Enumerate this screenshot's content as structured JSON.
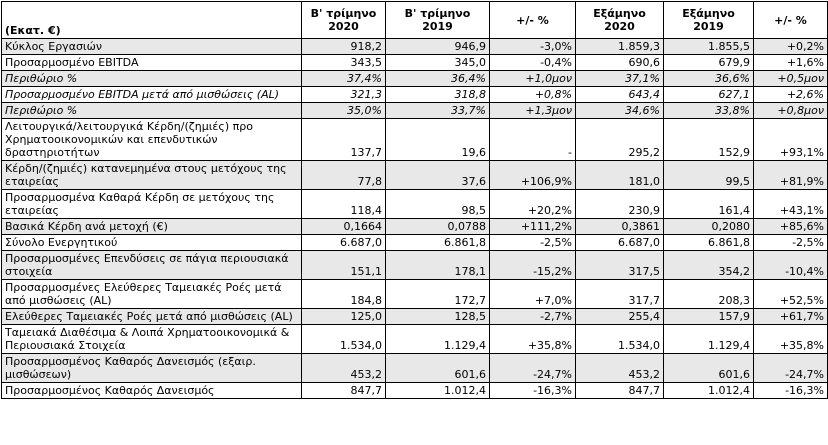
{
  "table": {
    "header": [
      "(Εκατ. €)",
      "Β' τρίμηνο\n2020",
      "Β' τρίμηνο\n2019",
      "+/- %",
      "Εξάμηνο\n2020",
      "Εξάμηνο\n2019",
      "+/- %"
    ],
    "rows": [
      [
        "Κύκλος Εργασιών",
        "918,2",
        "946,9",
        "-3,0%",
        "1.859,3",
        "1.855,5",
        "+0,2%"
      ],
      [
        "Προσαρμοσμένο EBITDA",
        "343,5",
        "345,0",
        "-0,4%",
        "690,6",
        "679,9",
        "+1,6%"
      ],
      [
        "Περιθώριο %",
        "37,4%",
        "36,4%",
        "+1,0μον",
        "37,1%",
        "36,6%",
        "+0,5μον"
      ],
      [
        "Προσαρμοσμένο EBITDA μετά από μισθώσεις (AL)",
        "321,3",
        "318,8",
        "+0,8%",
        "643,4",
        "627,1",
        "+2,6%"
      ],
      [
        "Περιθώριο %",
        "35,0%",
        "33,7%",
        "+1,3μον",
        "34,6%",
        "33,8%",
        "+0,8μον"
      ],
      [
        "Λειτουργικά/λειτουργικά Κέρδη/(ζημιές) προ Χρηματοοικονομικών και επενδυτικών δραστηριοτήτων",
        "137,7",
        "19,6",
        "-",
        "295,2",
        "152,9",
        "+93,1%"
      ],
      [
        "Κέρδη/(ζημιές) κατανεμημένα στους μετόχους της εταιρείας",
        "77,8",
        "37,6",
        "+106,9%",
        "181,0",
        "99,5",
        "+81,9%"
      ],
      [
        "Προσαρμοσμένα Καθαρά Κέρδη σε μετόχους της εταιρείας",
        "118,4",
        "98,5",
        "+20,2%",
        "230,9",
        "161,4",
        "+43,1%"
      ],
      [
        "Βασικά Κέρδη ανά μετοχή (€)",
        "0,1664",
        "0,0788",
        "+111,2%",
        "0,3861",
        "0,2080",
        "+85,6%"
      ],
      [
        "Σύνολο Ενεργητικού",
        "6.687,0",
        "6.861,8",
        "-2,5%",
        "6.687,0",
        "6.861,8",
        "-2,5%"
      ],
      [
        "Προσαρμοσμένες Επενδύσεις σε πάγια περιουσιακά στοιχεία",
        "151,1",
        "178,1",
        "-15,2%",
        "317,5",
        "354,2",
        "-10,4%"
      ],
      [
        "Προσαρμοσμένες Ελεύθερες Ταμειακές Ροές μετά από μισθώσεις (AL)",
        "184,8",
        "172,7",
        "+7,0%",
        "317,7",
        "208,3",
        "+52,5%"
      ],
      [
        "Ελεύθερες Ταμειακές Ροές μετά από μισθώσεις (AL)",
        "125,0",
        "128,5",
        "-2,7%",
        "255,4",
        "157,9",
        "+61,7%"
      ],
      [
        "Ταμειακά Διαθέσιμα & Λοιπά Χρηματοοικονομικά & Περιουσιακά Στοιχεία",
        "1.534,0",
        "1.129,4",
        "+35,8%",
        "1.534,0",
        "1.129,4",
        "+35,8%"
      ],
      [
        "Προσαρμοσμένος Καθαρός Δανεισμός (εξαιρ. μισθώσεων)",
        "453,2",
        "601,6",
        "-24,7%",
        "453,2",
        "601,6",
        "-24,7%"
      ],
      [
        "Προσαρμοσμένος Καθαρός Δανεισμός",
        "847,7",
        "1.012,4",
        "-16,3%",
        "847,7",
        "1.012,4",
        "-16,3%"
      ]
    ]
  }
}
